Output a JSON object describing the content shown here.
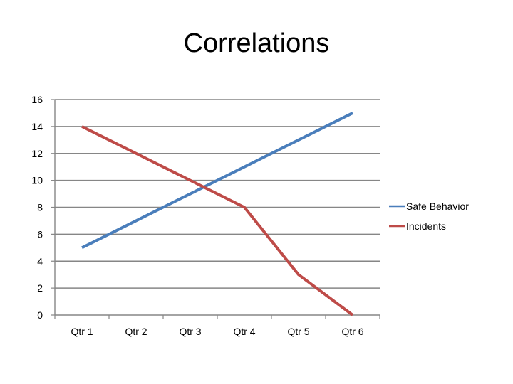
{
  "chart_data": {
    "type": "line",
    "title": "Correlations",
    "xlabel": "",
    "ylabel": "",
    "categories": [
      "Qtr 1",
      "Qtr 2",
      "Qtr 3",
      "Qtr 4",
      "Qtr 5",
      "Qtr 6"
    ],
    "ylim": [
      0,
      16
    ],
    "yticks": [
      0,
      2,
      4,
      6,
      8,
      10,
      12,
      14,
      16
    ],
    "grid": true,
    "legend_position": "right",
    "series": [
      {
        "name": "Safe Behavior",
        "values": [
          5,
          7,
          9,
          11,
          13,
          15
        ],
        "color": "#4a7ebb"
      },
      {
        "name": "Incidents",
        "values": [
          14,
          12,
          10,
          8,
          3,
          0
        ],
        "color": "#be4b48"
      }
    ]
  }
}
